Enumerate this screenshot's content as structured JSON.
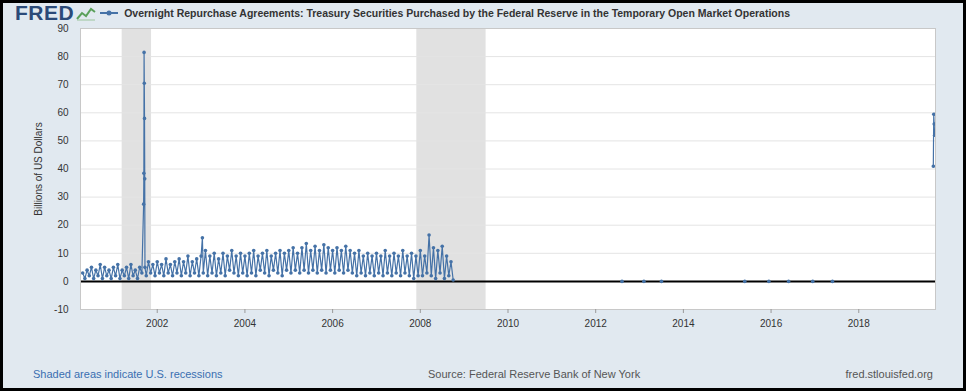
{
  "chart_data": {
    "type": "line",
    "logo": "FRED",
    "title": "Overnight Repurchase Agreements: Treasury Securities Purchased by the Federal Reserve in the Temporary Open Market Operations",
    "ylabel": "Billions of US Dollars",
    "note": "Shaded areas indicate U.S. recessions",
    "source": "Source: Federal Reserve Bank of New York",
    "site": "fred.stlouisfed.org",
    "color": "#4572a7",
    "marker": "circle",
    "line_style": "solid",
    "grid": true,
    "baseline": 0,
    "recessions": [
      [
        2001.2,
        2001.87
      ],
      [
        2007.92,
        2009.5
      ]
    ],
    "xlim": [
      2000.25,
      2019.75
    ],
    "xticks": [
      2002,
      2004,
      2006,
      2008,
      2010,
      2012,
      2014,
      2016,
      2018
    ],
    "ylim": [
      -10,
      90
    ],
    "yticks": [
      -10,
      0,
      10,
      20,
      30,
      40,
      50,
      60,
      70,
      80,
      90
    ],
    "x": [
      2000.3,
      2000.35,
      2000.4,
      2000.45,
      2000.5,
      2000.55,
      2000.6,
      2000.65,
      2000.7,
      2000.75,
      2000.8,
      2000.85,
      2000.9,
      2000.95,
      2001.0,
      2001.05,
      2001.1,
      2001.15,
      2001.2,
      2001.25,
      2001.3,
      2001.35,
      2001.4,
      2001.45,
      2001.5,
      2001.55,
      2001.6,
      2001.65,
      2001.69,
      2001.695,
      2001.7,
      2001.705,
      2001.71,
      2001.715,
      2001.72,
      2001.75,
      2001.8,
      2001.85,
      2001.9,
      2001.95,
      2002.0,
      2002.05,
      2002.1,
      2002.15,
      2002.2,
      2002.25,
      2002.3,
      2002.35,
      2002.4,
      2002.45,
      2002.5,
      2002.55,
      2002.6,
      2002.65,
      2002.7,
      2002.75,
      2002.8,
      2002.85,
      2002.9,
      2002.95,
      2003.0,
      2003.03,
      2003.05,
      2003.1,
      2003.15,
      2003.2,
      2003.25,
      2003.3,
      2003.35,
      2003.4,
      2003.45,
      2003.5,
      2003.55,
      2003.6,
      2003.65,
      2003.7,
      2003.75,
      2003.8,
      2003.85,
      2003.9,
      2003.95,
      2004.0,
      2004.05,
      2004.1,
      2004.15,
      2004.2,
      2004.25,
      2004.3,
      2004.35,
      2004.4,
      2004.45,
      2004.5,
      2004.55,
      2004.6,
      2004.65,
      2004.7,
      2004.75,
      2004.8,
      2004.85,
      2004.9,
      2004.95,
      2005.0,
      2005.05,
      2005.1,
      2005.15,
      2005.2,
      2005.25,
      2005.3,
      2005.35,
      2005.4,
      2005.45,
      2005.5,
      2005.55,
      2005.6,
      2005.65,
      2005.7,
      2005.75,
      2005.8,
      2005.85,
      2005.9,
      2005.95,
      2006.0,
      2006.05,
      2006.1,
      2006.15,
      2006.2,
      2006.25,
      2006.3,
      2006.35,
      2006.4,
      2006.45,
      2006.5,
      2006.55,
      2006.6,
      2006.65,
      2006.7,
      2006.75,
      2006.8,
      2006.85,
      2006.9,
      2006.95,
      2007.0,
      2007.05,
      2007.1,
      2007.15,
      2007.2,
      2007.25,
      2007.3,
      2007.35,
      2007.4,
      2007.45,
      2007.5,
      2007.55,
      2007.6,
      2007.65,
      2007.7,
      2007.75,
      2007.8,
      2007.85,
      2007.9,
      2007.95,
      2008.0,
      2008.05,
      2008.1,
      2008.15,
      2008.2,
      2008.25,
      2008.3,
      2008.35,
      2008.4,
      2008.45,
      2008.5,
      2008.55,
      2008.6,
      2008.65,
      2008.7,
      2008.75,
      2010.5,
      2012.6,
      2012.85,
      2013.1,
      2013.3,
      2013.5,
      2014.5,
      2015.4,
      2015.7,
      2015.95,
      2016.2,
      2016.4,
      2016.7,
      2016.95,
      2017.2,
      2017.4,
      2018.5,
      2019.7,
      2019.71,
      2019.72,
      2019.73
    ],
    "values": [
      3,
      1,
      4,
      2,
      5,
      1,
      4,
      2,
      6,
      1,
      5,
      2,
      4,
      1,
      5,
      2,
      6,
      1,
      4,
      2,
      5,
      1,
      6,
      2,
      4,
      1,
      5,
      3,
      27.5,
      38.5,
      81.5,
      70.5,
      58,
      36.5,
      5,
      2,
      7,
      3,
      6,
      2,
      7,
      3,
      6,
      2,
      8,
      3,
      6,
      2,
      7,
      3,
      8,
      2,
      7,
      3,
      9,
      2,
      7,
      3,
      8,
      2,
      9,
      15.5,
      3,
      11,
      2,
      9,
      3,
      10,
      2,
      8,
      3,
      10,
      2,
      9,
      4,
      11,
      3,
      9,
      2,
      10,
      3,
      9,
      2,
      10,
      3,
      11,
      2,
      9,
      4,
      10,
      3,
      11,
      2,
      9,
      4,
      10,
      3,
      11,
      2,
      10,
      4,
      11,
      3,
      12,
      4,
      10,
      3,
      12,
      4,
      13.5,
      3,
      11,
      4,
      12.5,
      3,
      11,
      4,
      13,
      3,
      12,
      4,
      11,
      3,
      12,
      4,
      11,
      3,
      12.5,
      4,
      11,
      3,
      10,
      2,
      11,
      3,
      9,
      2,
      10,
      3,
      9,
      2,
      10,
      3,
      9,
      2,
      11,
      3,
      9,
      2,
      10,
      3,
      9,
      2,
      11,
      3,
      9,
      2,
      10,
      1,
      9,
      2,
      11,
      2,
      9,
      3,
      16.5,
      2,
      12,
      1,
      11,
      3,
      12.5,
      1,
      9,
      2,
      7,
      0.5,
      null,
      0,
      null,
      0,
      null,
      0,
      null,
      0,
      null,
      0,
      null,
      0,
      null,
      0,
      null,
      0,
      null,
      41,
      59.5,
      56,
      52
    ]
  }
}
